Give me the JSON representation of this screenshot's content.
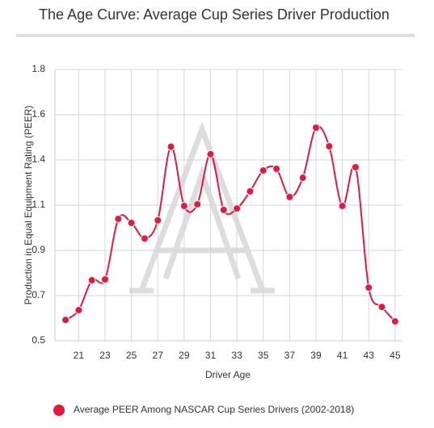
{
  "chart_data": {
    "type": "line",
    "title": "The Age Curve: Average Cup Series Driver Production",
    "x_label": "Driver Age",
    "y_label": "Production in Equal Equipment Rating (PEER)",
    "x": [
      20,
      21,
      22,
      23,
      24,
      25,
      26,
      27,
      28,
      29,
      30,
      31,
      32,
      33,
      34,
      35,
      36,
      37,
      38,
      39,
      40,
      41,
      42,
      43,
      44,
      45
    ],
    "series": [
      {
        "name": "Average PEER Among NASCAR Cup Series Drivers (2002-2018)",
        "color": "#e8173f",
        "values": [
          0.6,
          0.647,
          0.79,
          0.794,
          1.084,
          1.065,
          0.99,
          1.077,
          1.43,
          1.146,
          1.154,
          1.394,
          1.127,
          1.134,
          1.216,
          1.316,
          1.324,
          1.189,
          1.281,
          1.521,
          1.432,
          1.146,
          1.332,
          0.755,
          0.662,
          0.593
        ]
      }
    ],
    "xlim": [
      19.2,
      45.5
    ],
    "xticks": [
      21,
      23,
      25,
      27,
      29,
      31,
      33,
      35,
      37,
      39,
      41,
      43,
      45
    ],
    "ylim": [
      0.5,
      1.8
    ],
    "yticks": [
      0.5,
      {
        "value": 0.7167,
        "label": "0.7"
      },
      {
        "value": 0.9333,
        "label": "0.9"
      },
      {
        "value": 1.15,
        "label": "1.1"
      },
      {
        "value": 1.3667,
        "label": "1.4"
      },
      {
        "value": 1.5833,
        "label": "1.6"
      },
      1.8
    ],
    "grid": true,
    "legend": "bottom"
  }
}
